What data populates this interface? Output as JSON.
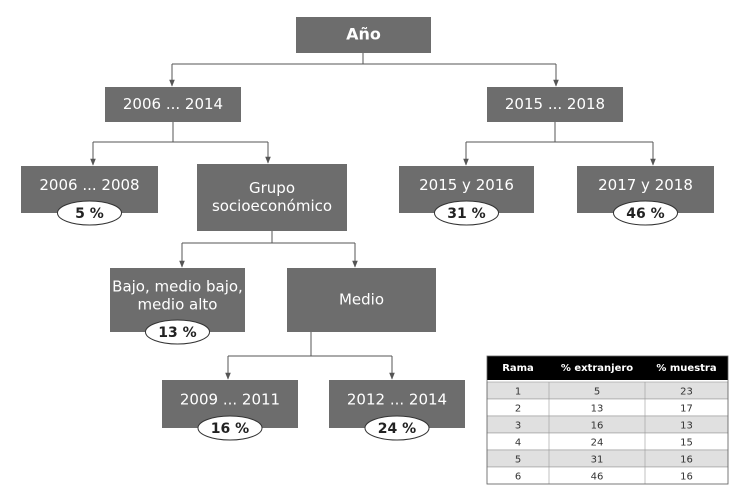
{
  "nodes": [
    {
      "label": [
        "Año"
      ]
    },
    {
      "label": [
        "2006 ... 2014"
      ]
    },
    {
      "label": [
        "2015 ... 2018"
      ]
    },
    {
      "label": [
        "2006 ... 2008"
      ],
      "badge": "5 %"
    },
    {
      "label": [
        "Grupo",
        "socioeconómico"
      ]
    },
    {
      "label": [
        "2015 y 2016"
      ],
      "badge": "31 %"
    },
    {
      "label": [
        "2017 y 2018"
      ],
      "badge": "46 %"
    },
    {
      "label": [
        "Bajo, medio bajo,",
        "medio alto"
      ],
      "badge": "13 %"
    },
    {
      "label": [
        "Medio"
      ]
    },
    {
      "label": [
        "2009 ... 2011"
      ],
      "badge": "16 %"
    },
    {
      "label": [
        "2012 ... 2014"
      ],
      "badge": "24 %"
    }
  ],
  "table": {
    "headers": [
      "Rama",
      "% extranjero",
      "% muestra"
    ],
    "rows": [
      [
        1,
        5,
        23
      ],
      [
        2,
        13,
        17
      ],
      [
        3,
        16,
        13
      ],
      [
        4,
        24,
        15
      ],
      [
        5,
        31,
        16
      ],
      [
        6,
        46,
        16
      ]
    ]
  }
}
